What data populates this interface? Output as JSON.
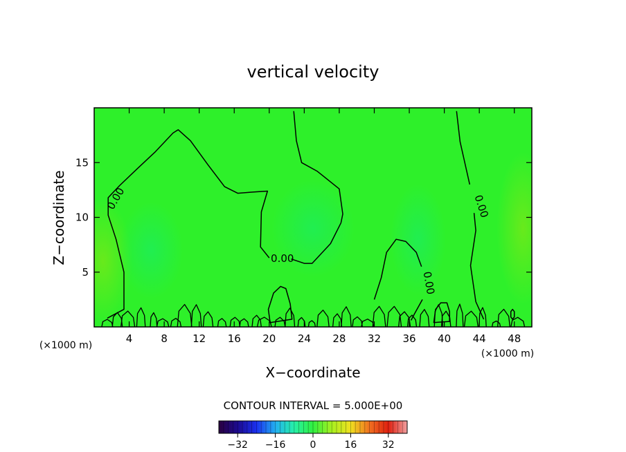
{
  "chart_data": {
    "type": "heatmap",
    "title": "vertical velocity",
    "xlabel": "X−coordinate",
    "ylabel": "Z−coordinate",
    "xunit": "(×1000 m)",
    "yunit": "(×1000 m)",
    "xlim": [
      0,
      50
    ],
    "ylim": [
      0,
      20
    ],
    "xticks": [
      4,
      8,
      12,
      16,
      20,
      24,
      28,
      32,
      36,
      40,
      44,
      48
    ],
    "xtick_labels": [
      "4",
      "8",
      "12",
      "16",
      "20",
      "24",
      "28",
      "32",
      "36",
      "40",
      "44",
      "48"
    ],
    "yticks": [
      5,
      10,
      15
    ],
    "ytick_labels": [
      "5",
      "10",
      "15"
    ],
    "grid": false,
    "colors": {
      "field": "#2ef02a",
      "field_positive_tint": "#7ce817",
      "field_negative_tint": "#18ec6a",
      "contour": "#000000"
    },
    "contour_interval_text": "CONTOUR INTERVAL = 5.000E+00",
    "contour_labels": [
      {
        "text": "0.00",
        "x": 2.5,
        "z": 11.7,
        "angle": -60
      },
      {
        "text": "0.00",
        "x": 21.5,
        "z": 6.2,
        "angle": 0
      },
      {
        "text": "0.00",
        "x": 38.2,
        "z": 4.0,
        "angle": 80
      },
      {
        "text": "0.00",
        "x": 44.2,
        "z": 11.0,
        "angle": 72
      }
    ],
    "contours_zero": [
      [
        [
          1.5,
          0.8
        ],
        [
          3.4,
          1.6
        ],
        [
          3.4,
          5.0
        ],
        [
          2.5,
          8.0
        ],
        [
          1.6,
          10.2
        ],
        [
          1.6,
          11.8
        ],
        [
          2.9,
          12.9
        ],
        [
          5.0,
          14.5
        ],
        [
          7.0,
          16.0
        ],
        [
          9.0,
          17.7
        ],
        [
          9.6,
          18.0
        ],
        [
          11.0,
          17.0
        ],
        [
          13.0,
          14.8
        ],
        [
          14.9,
          12.8
        ],
        [
          16.4,
          12.2
        ],
        [
          18.0,
          12.3
        ],
        [
          19.8,
          12.4
        ],
        [
          19.1,
          10.5
        ],
        [
          19.0,
          7.3
        ],
        [
          20.0,
          6.3
        ]
      ],
      [
        [
          22.5,
          6.2
        ],
        [
          24.0,
          5.8
        ],
        [
          24.9,
          5.8
        ],
        [
          27.0,
          7.6
        ],
        [
          28.2,
          9.5
        ],
        [
          28.4,
          10.3
        ],
        [
          28.0,
          12.6
        ],
        [
          25.5,
          14.2
        ],
        [
          23.7,
          15.0
        ],
        [
          23.1,
          17.0
        ],
        [
          22.8,
          19.7
        ]
      ],
      [
        [
          32.0,
          2.5
        ],
        [
          32.8,
          4.5
        ],
        [
          33.4,
          6.8
        ],
        [
          34.5,
          8.0
        ],
        [
          35.6,
          7.8
        ],
        [
          36.8,
          6.8
        ],
        [
          37.4,
          5.5
        ]
      ],
      [
        [
          37.5,
          2.5
        ],
        [
          36.6,
          1.2
        ],
        [
          36.2,
          0.6
        ]
      ],
      [
        [
          44.5,
          0.7
        ],
        [
          43.6,
          2.3
        ],
        [
          43.0,
          5.6
        ],
        [
          43.6,
          8.8
        ],
        [
          43.4,
          10.4
        ]
      ],
      [
        [
          42.9,
          13.0
        ],
        [
          41.8,
          16.9
        ],
        [
          41.4,
          19.7
        ]
      ]
    ],
    "contour_loops": [
      [
        [
          20.1,
          0.4
        ],
        [
          19.9,
          1.6
        ],
        [
          20.5,
          3.1
        ],
        [
          21.3,
          3.7
        ],
        [
          21.9,
          3.5
        ],
        [
          22.4,
          2.1
        ],
        [
          22.6,
          0.7
        ]
      ],
      [
        [
          38.8,
          0.4
        ],
        [
          39.0,
          1.6
        ],
        [
          39.6,
          2.2
        ],
        [
          40.3,
          2.2
        ],
        [
          40.6,
          1.4
        ],
        [
          40.6,
          0.5
        ]
      ],
      [
        [
          47.6,
          0.9
        ],
        [
          47.6,
          1.4
        ],
        [
          47.8,
          1.6
        ],
        [
          48.0,
          1.4
        ],
        [
          48.0,
          0.9
        ],
        [
          47.8,
          0.7
        ]
      ]
    ],
    "colorbar": {
      "tick_values": [
        -32,
        -16,
        0,
        16,
        32
      ],
      "tick_labels": [
        "−32",
        "−16",
        "0",
        "16",
        "32"
      ],
      "range": [
        -40,
        40
      ],
      "stops": [
        "#2a0040",
        "#1c0a90",
        "#1a30f0",
        "#22b0f0",
        "#26f0a8",
        "#30f040",
        "#a8f020",
        "#f0e020",
        "#f07020",
        "#e02010",
        "#f0a0a0"
      ]
    }
  }
}
